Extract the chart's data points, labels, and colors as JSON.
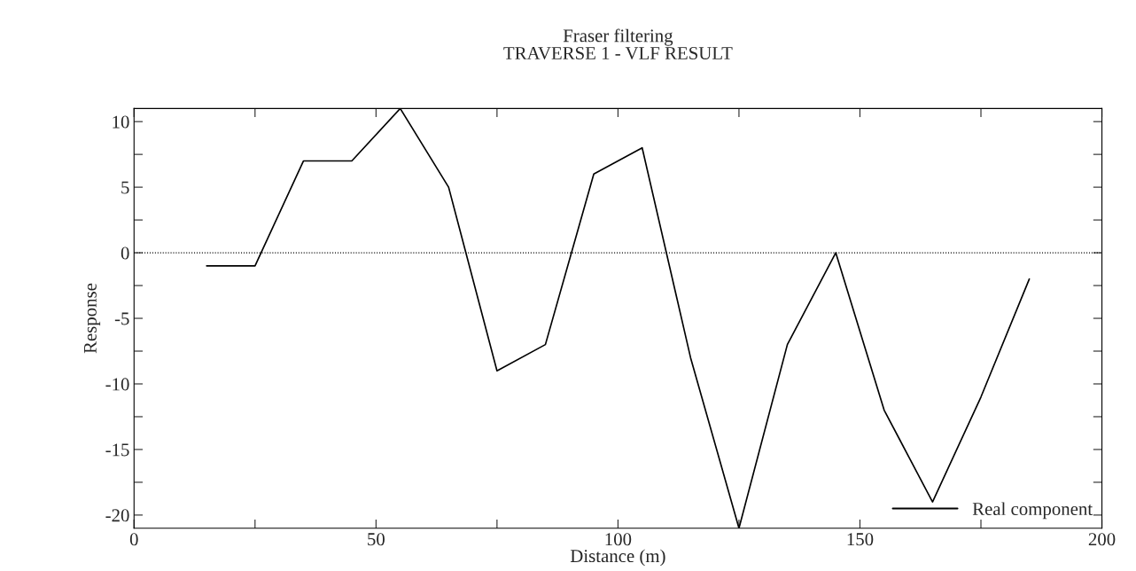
{
  "chart_data": {
    "type": "line",
    "title": "Fraser filtering\nTRAVERSE 1 - VLF RESULT",
    "xlabel": "Distance (m)",
    "ylabel": "Response",
    "x": [
      15,
      25,
      35,
      45,
      55,
      65,
      75,
      85,
      95,
      105,
      115,
      125,
      135,
      145,
      155,
      165,
      175,
      185
    ],
    "series": [
      {
        "name": "Real component",
        "color": "#000000",
        "values": [
          -1,
          -1,
          7,
          7,
          11,
          5,
          -9,
          -7,
          6,
          8,
          -8,
          -21,
          -7,
          0,
          -12,
          -19,
          -11,
          -2
        ]
      }
    ],
    "xlim": [
      0,
      200
    ],
    "xticks": [
      0,
      {
        "value": 25,
        "label": null
      },
      50,
      {
        "value": 75,
        "label": null
      },
      100,
      {
        "value": 125,
        "label": null
      },
      150,
      {
        "value": 175,
        "label": null
      },
      200
    ],
    "ylim": [
      -21,
      11
    ],
    "yticks": [
      {
        "value": -20,
        "label": "-20"
      },
      {
        "value": -17.5,
        "label": null
      },
      {
        "value": -15,
        "label": "-15"
      },
      {
        "value": -12.5,
        "label": null
      },
      {
        "value": -10,
        "label": "-10"
      },
      {
        "value": -7.5,
        "label": null
      },
      {
        "value": -5,
        "label": "-5"
      },
      {
        "value": -2.5,
        "label": null
      },
      0,
      {
        "value": 2.5,
        "label": null
      },
      5,
      {
        "value": 7.5,
        "label": null
      },
      10
    ],
    "ref_lines": [
      {
        "axis": "y",
        "value": 0,
        "color": "#000000",
        "line_style": "dotted"
      }
    ],
    "grid": false,
    "legend": "bottom right",
    "marker": "none",
    "line_style": "solid"
  }
}
